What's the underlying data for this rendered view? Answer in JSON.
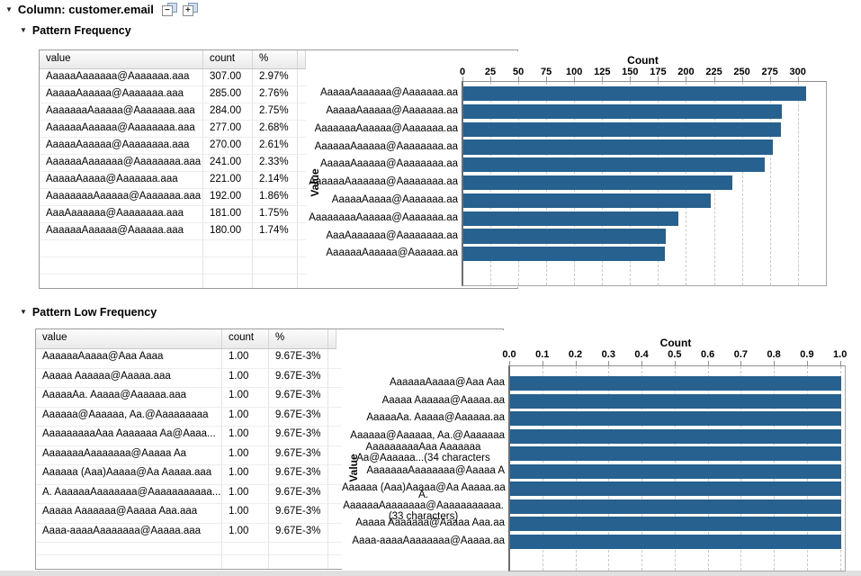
{
  "window": {
    "header_label": "Column: customer.email"
  },
  "controls": {
    "collapse_glyph": "−",
    "expand_glyph": "+"
  },
  "sections": [
    {
      "title": "Pattern Frequency",
      "table": {
        "columns": [
          "value",
          "count",
          "%"
        ],
        "rows": [
          [
            "AaaaaAaaaaaa@Aaaaaaa.aaa",
            "307.00",
            "2.97%"
          ],
          [
            "AaaaaAaaaaa@Aaaaaaa.aaa",
            "285.00",
            "2.76%"
          ],
          [
            "AaaaaaaAaaaaa@Aaaaaaa.aaa",
            "284.00",
            "2.75%"
          ],
          [
            "AaaaaaAaaaaa@Aaaaaaaa.aaa",
            "277.00",
            "2.68%"
          ],
          [
            "AaaaaAaaaaa@Aaaaaaaa.aaa",
            "270.00",
            "2.61%"
          ],
          [
            "AaaaaaAaaaaaa@Aaaaaaaa.aaa",
            "241.00",
            "2.33%"
          ],
          [
            "AaaaaAaaaa@Aaaaaaa.aaa",
            "221.00",
            "2.14%"
          ],
          [
            "AaaaaaaaAaaaaa@Aaaaaaa.aaa",
            "192.00",
            "1.86%"
          ],
          [
            "AaaAaaaaaa@Aaaaaaaa.aaa",
            "181.00",
            "1.75%"
          ],
          [
            "AaaaaaAaaaaa@Aaaaaa.aaa",
            "180.00",
            "1.74%"
          ]
        ]
      }
    },
    {
      "title": "Pattern Low Frequency",
      "table": {
        "columns": [
          "value",
          "count",
          "%"
        ],
        "rows": [
          [
            "AaaaaaAaaaa@Aaa Aaaa",
            "1.00",
            "9.67E-3%"
          ],
          [
            "Aaaaa Aaaaaa@Aaaaa.aaa",
            "1.00",
            "9.67E-3%"
          ],
          [
            "AaaaaAa. Aaaaa@Aaaaaa.aaa",
            "1.00",
            "9.67E-3%"
          ],
          [
            "Aaaaaa@Aaaaaa, Aa.@Aaaaaaaaa",
            "1.00",
            "9.67E-3%"
          ],
          [
            "AaaaaaaaaAaa Aaaaaaa Aa@Aaaa...",
            "1.00",
            "9.67E-3%"
          ],
          [
            "AaaaaaaAaaaaaaa@Aaaaa Aa",
            "1.00",
            "9.67E-3%"
          ],
          [
            "Aaaaaa (Aaa)Aaaaa@Aa Aaaaa.aaa",
            "1.00",
            "9.67E-3%"
          ],
          [
            "A. AaaaaaAaaaaaaa@Aaaaaaaaaaa...",
            "1.00",
            "9.67E-3%"
          ],
          [
            "Aaaaa Aaaaaaa@Aaaaa Aaa.aaa",
            "1.00",
            "9.67E-3%"
          ],
          [
            "Aaaa-aaaaAaaaaaaa@Aaaaa.aaa",
            "1.00",
            "9.67E-3%"
          ]
        ]
      }
    }
  ],
  "chart_data": [
    {
      "type": "bar",
      "orientation": "horizontal",
      "title": "Count",
      "xlabel": "Count",
      "ylabel": "Value",
      "categories": [
        "AaaaaAaaaaaa@Aaaaaaa.aaa",
        "AaaaaAaaaaa@Aaaaaaa.aaa",
        "AaaaaaaAaaaaa@Aaaaaaa.aaa",
        "AaaaaaAaaaaa@Aaaaaaaa.aaa",
        "AaaaaAaaaaa@Aaaaaaaa.aaa",
        "AaaaaaAaaaaaa@Aaaaaaaa.aaa",
        "AaaaaAaaaa@Aaaaaaa.aaa",
        "AaaaaaaaAaaaaa@Aaaaaaa.aaa",
        "AaaAaaaaaa@Aaaaaaaa.aaa",
        "AaaaaaAaaaaa@Aaaaaa.aaa"
      ],
      "values": [
        307,
        285,
        284,
        277,
        270,
        241,
        221,
        192,
        181,
        180
      ],
      "xlim": [
        0,
        324
      ],
      "x_ticks": [
        0,
        25,
        50,
        75,
        100,
        125,
        150,
        175,
        200,
        225,
        250,
        275,
        300
      ],
      "x_tick_labels": [
        "0",
        "25",
        "50",
        "75",
        "100",
        "125",
        "150",
        "175",
        "200",
        "225",
        "250",
        "275",
        "300"
      ],
      "axis_category_labels": [
        [
          "AaaaaAaaaaaa@Aaaaaaa.aa"
        ],
        [
          "AaaaaAaaaaa@Aaaaaaa.aa"
        ],
        [
          "AaaaaaaAaaaaa@Aaaaaaa.aa"
        ],
        [
          "AaaaaaAaaaaa@Aaaaaaaa.aa"
        ],
        [
          "AaaaaAaaaaa@Aaaaaaaa.aa"
        ],
        [
          "AaaaaaAaaaaaa@Aaaaaaaa.aa"
        ],
        [
          "AaaaaAaaaa@Aaaaaaa.aa"
        ],
        [
          "AaaaaaaaAaaaaa@Aaaaaaa.aa"
        ],
        [
          "AaaAaaaaaa@Aaaaaaaa.aa"
        ],
        [
          "AaaaaaAaaaaa@Aaaaaa.aa"
        ]
      ],
      "bar_color": "#26618f",
      "grid": "vertical-dashed",
      "legend": "none"
    },
    {
      "type": "bar",
      "orientation": "horizontal",
      "title": "Count",
      "xlabel": "Count",
      "ylabel": "Value",
      "categories": [
        "AaaaaaAaaaa@Aaa Aaaa",
        "Aaaaa Aaaaaa@Aaaaa.aaa",
        "AaaaaAa. Aaaaa@Aaaaaa.aaa",
        "Aaaaaa@Aaaaaa, Aa.@Aaaaaaaaa",
        "AaaaaaaaaAaa Aaaaaaa Aa@Aaaa...",
        "AaaaaaaAaaaaaaa@Aaaaa Aa",
        "Aaaaaa (Aaa)Aaaaa@Aa Aaaaa.aaa",
        "A. AaaaaaAaaaaaaa@Aaaaaaaaaaa...",
        "Aaaaa Aaaaaaa@Aaaaa Aaa.aaa",
        "Aaaa-aaaaAaaaaaaa@Aaaaa.aaa"
      ],
      "values": [
        1.0,
        1.0,
        1.0,
        1.0,
        1.0,
        1.0,
        1.0,
        1.0,
        1.0,
        1.0
      ],
      "xlim": [
        0,
        1.01
      ],
      "x_ticks": [
        0.0,
        0.1,
        0.2,
        0.3,
        0.4,
        0.5,
        0.6,
        0.7,
        0.8,
        0.9,
        1.0
      ],
      "x_tick_labels": [
        "0.0",
        "0.1",
        "0.2",
        "0.3",
        "0.4",
        "0.5",
        "0.6",
        "0.7",
        "0.8",
        "0.9",
        "1.0"
      ],
      "axis_category_labels": [
        [
          "AaaaaaAaaaa@Aaa Aaa"
        ],
        [
          "Aaaaa Aaaaaa@Aaaaa.aa"
        ],
        [
          "AaaaaAa. Aaaaa@Aaaaaa.aa"
        ],
        [
          "Aaaaaa@Aaaaaa, Aa.@Aaaaaaa"
        ],
        [
          "AaaaaaaaaAaa Aaaaaaa",
          "Aa@Aaaaaa...(34 characters"
        ],
        [
          "AaaaaaaAaaaaaaa@Aaaaa A"
        ],
        [
          "Aaaaaa (Aaa)Aaaaa@Aa Aaaaa.aa"
        ],
        [
          "A.",
          "AaaaaaAaaaaaaa@Aaaaaaaaaaa.",
          "(33 characters)"
        ],
        [
          "Aaaaa Aaaaaaa@Aaaaa Aaa.aa"
        ],
        [
          "Aaaa-aaaaAaaaaaaa@Aaaaa.aa"
        ]
      ],
      "bar_color": "#26618f",
      "grid": "vertical-dashed",
      "legend": "none"
    }
  ]
}
